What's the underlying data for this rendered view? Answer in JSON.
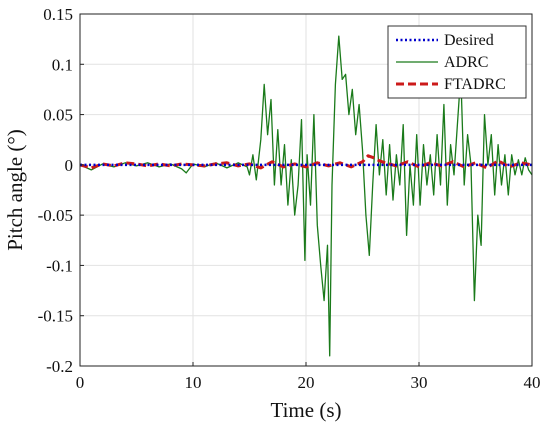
{
  "chart_data": {
    "type": "line",
    "title": "",
    "xlabel": "Time (s)",
    "ylabel": "Pitch angle (°)",
    "xlim": [
      0,
      40
    ],
    "ylim": [
      -0.2,
      0.15
    ],
    "xticks": [
      0,
      10,
      20,
      30,
      40
    ],
    "xtick_labels": [
      "0",
      "10",
      "20",
      "30",
      "40"
    ],
    "yticks": [
      -0.2,
      -0.15,
      -0.1,
      -0.05,
      0,
      0.05,
      0.1,
      0.15
    ],
    "ytick_labels": [
      "-0.2",
      "-0.15",
      "-0.1",
      "-0.05",
      "0",
      "0.05",
      "0.1",
      "0.15"
    ],
    "grid": true,
    "legend_position": "top-right",
    "series": [
      {
        "name": "Desired",
        "color": "#0000cc",
        "style": "dotted",
        "x": [
          0,
          40
        ],
        "y": [
          0,
          0
        ]
      },
      {
        "name": "ADRC",
        "color": "#1a7a1a",
        "style": "solid",
        "x": [
          0,
          1,
          2,
          3,
          4,
          5,
          6,
          7,
          8,
          9,
          9.4,
          10,
          11,
          12,
          13,
          14,
          14.8,
          15,
          15.3,
          15.6,
          16,
          16.3,
          16.6,
          16.9,
          17.2,
          17.5,
          17.8,
          18.1,
          18.4,
          18.7,
          19,
          19.3,
          19.6,
          19.9,
          20.1,
          20.4,
          20.7,
          21,
          21.3,
          21.6,
          21.9,
          22.1,
          22.3,
          22.6,
          22.9,
          23.2,
          23.5,
          23.8,
          24.1,
          24.4,
          24.7,
          25,
          25.3,
          25.6,
          25.9,
          26.2,
          26.5,
          26.8,
          27.1,
          27.4,
          27.7,
          28,
          28.3,
          28.6,
          28.9,
          29.2,
          29.5,
          29.8,
          30.1,
          30.4,
          30.7,
          31,
          31.3,
          31.6,
          31.9,
          32.2,
          32.5,
          32.8,
          33.1,
          33.4,
          33.7,
          34,
          34.3,
          34.6,
          34.9,
          35.2,
          35.5,
          35.8,
          36.1,
          36.4,
          36.7,
          37,
          37.3,
          37.6,
          37.9,
          38.2,
          38.5,
          38.8,
          39.1,
          39.4,
          39.7,
          40
        ],
        "y": [
          0,
          -0.005,
          0.001,
          -0.002,
          0.002,
          -0.001,
          0.002,
          -0.002,
          0.001,
          -0.004,
          -0.008,
          0.001,
          -0.002,
          0.002,
          -0.003,
          0.002,
          -0.002,
          -0.01,
          0.01,
          -0.015,
          0.025,
          0.08,
          0.03,
          0.065,
          -0.02,
          0.035,
          -0.02,
          0.02,
          -0.04,
          0.005,
          -0.05,
          -0.02,
          0.045,
          -0.095,
          0.01,
          -0.04,
          0.05,
          -0.06,
          -0.1,
          -0.135,
          -0.08,
          -0.19,
          -0.02,
          0.08,
          0.128,
          0.085,
          0.09,
          0.05,
          0.075,
          0.03,
          0.06,
          0.015,
          -0.05,
          -0.09,
          -0.02,
          0.04,
          -0.01,
          0.025,
          -0.03,
          0.02,
          -0.035,
          0.01,
          -0.02,
          0.04,
          -0.07,
          0.0,
          -0.04,
          0.03,
          -0.04,
          0.02,
          -0.02,
          0.01,
          -0.03,
          0.03,
          -0.02,
          0.06,
          -0.04,
          0.02,
          -0.01,
          0.04,
          0.09,
          -0.02,
          0.03,
          0.0,
          -0.135,
          -0.05,
          -0.08,
          0.05,
          0.0,
          0.03,
          -0.03,
          0.02,
          -0.02,
          0.01,
          -0.03,
          0.01,
          -0.01,
          0.005,
          -0.01,
          0.007,
          -0.005,
          -0.01
        ]
      },
      {
        "name": "FTADRC",
        "color": "#cc1a1a",
        "style": "dashed",
        "x": [
          0,
          1,
          2,
          3,
          4,
          5,
          6,
          7,
          8,
          9,
          10,
          11,
          12,
          13,
          14,
          15,
          16,
          17,
          18,
          19,
          20,
          21,
          22,
          23,
          24,
          25,
          25.5,
          26,
          26.5,
          27,
          28,
          29,
          30,
          31,
          32,
          33,
          34,
          35,
          36,
          37,
          38,
          39,
          40
        ],
        "y": [
          0,
          -0.003,
          0.001,
          -0.001,
          0.002,
          0.001,
          -0.001,
          0.001,
          -0.001,
          0.001,
          0.0,
          -0.001,
          0.001,
          0.002,
          -0.001,
          0.001,
          -0.003,
          0.003,
          -0.002,
          0.001,
          -0.002,
          0.002,
          -0.001,
          0.002,
          -0.002,
          0.003,
          0.009,
          0.007,
          0.004,
          0.002,
          -0.001,
          0.003,
          -0.002,
          0.002,
          -0.001,
          0.003,
          -0.002,
          0.002,
          -0.003,
          0.004,
          -0.002,
          0.002,
          0.0
        ]
      }
    ]
  }
}
